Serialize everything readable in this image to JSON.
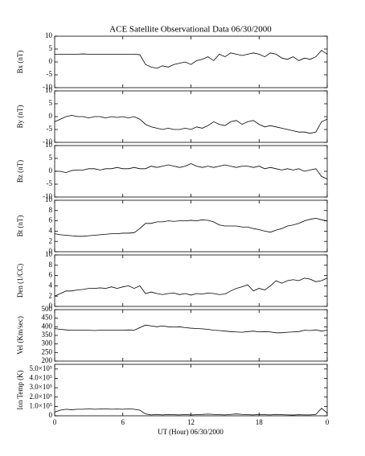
{
  "chart_data": [
    {
      "type": "line",
      "title": "ACE Satellite Observational Data  06/30/2000",
      "y_label": "Bx (nT)",
      "color": "#000000",
      "x": [
        0,
        0.5,
        1,
        1.5,
        2,
        2.5,
        3,
        3.5,
        4,
        4.5,
        5,
        5.5,
        6,
        6.5,
        7,
        7.5,
        8,
        8.5,
        9,
        9.5,
        10,
        10.5,
        11,
        11.5,
        12,
        12.5,
        13,
        13.5,
        14,
        14.5,
        15,
        15.5,
        16,
        16.5,
        17,
        17.5,
        18,
        18.5,
        19,
        19.5,
        20,
        20.5,
        21,
        21.5,
        22,
        22.5,
        23,
        23.5,
        24
      ],
      "values": [
        3,
        3,
        3,
        3,
        3,
        3.1,
        3,
        3,
        3,
        3,
        3,
        3,
        3,
        3,
        3,
        2.8,
        -1,
        -2,
        -2.5,
        -1.5,
        -2,
        -1,
        -0.5,
        0,
        -1,
        0.5,
        1,
        2,
        0.5,
        3,
        2,
        3.5,
        3,
        2.5,
        3,
        3.5,
        3,
        2,
        3.5,
        3,
        1.5,
        1,
        2,
        0.5,
        1.5,
        1,
        2,
        4.5,
        3
      ],
      "ylim": [
        -10,
        10
      ],
      "yticks": [
        -10,
        -5,
        0,
        5,
        10
      ]
    },
    {
      "type": "line",
      "y_label": "By (nT)",
      "color": "#000000",
      "x": [
        0,
        0.5,
        1,
        1.5,
        2,
        2.5,
        3,
        3.5,
        4,
        4.5,
        5,
        5.5,
        6,
        6.5,
        7,
        7.5,
        8,
        8.5,
        9,
        9.5,
        10,
        10.5,
        11,
        11.5,
        12,
        12.5,
        13,
        13.5,
        14,
        14.5,
        15,
        15.5,
        16,
        16.5,
        17,
        17.5,
        18,
        18.5,
        19,
        19.5,
        20,
        20.5,
        21,
        21.5,
        22,
        22.5,
        23,
        23.5,
        24
      ],
      "values": [
        -2,
        -1,
        0,
        0.5,
        0,
        0,
        -0.5,
        0,
        0,
        -0.5,
        0,
        -0.3,
        0,
        -0.5,
        0,
        -1,
        -3,
        -4,
        -4.5,
        -5,
        -4.5,
        -5,
        -5,
        -4.5,
        -5,
        -4,
        -4.5,
        -3.5,
        -2,
        -3,
        -3.5,
        -2,
        -1.5,
        -3,
        -2,
        -1.5,
        -3,
        -4,
        -3.5,
        -4,
        -4.5,
        -5,
        -5.5,
        -6,
        -6,
        -6.5,
        -6,
        -2,
        -1
      ],
      "ylim": [
        -10,
        10
      ],
      "yticks": [
        -10,
        -5,
        0,
        5,
        10
      ]
    },
    {
      "type": "line",
      "y_label": "Bz (nT)",
      "color": "#000000",
      "x": [
        0,
        0.5,
        1,
        1.5,
        2,
        2.5,
        3,
        3.5,
        4,
        4.5,
        5,
        5.5,
        6,
        6.5,
        7,
        7.5,
        8,
        8.5,
        9,
        9.5,
        10,
        10.5,
        11,
        11.5,
        12,
        12.5,
        13,
        13.5,
        14,
        14.5,
        15,
        15.5,
        16,
        16.5,
        17,
        17.5,
        18,
        18.5,
        19,
        19.5,
        20,
        20.5,
        21,
        21.5,
        22,
        22.5,
        23,
        23.5,
        24
      ],
      "values": [
        0,
        0,
        -0.5,
        0.3,
        0.5,
        0.5,
        1,
        1,
        0.5,
        1,
        1,
        1.5,
        1,
        1,
        1.5,
        1,
        1,
        2,
        1.5,
        2,
        2.5,
        2,
        1.5,
        2,
        3,
        2,
        1.5,
        2,
        1.5,
        2,
        2.5,
        2,
        1.5,
        2,
        2,
        1.5,
        2,
        1,
        1.5,
        1,
        0.5,
        1,
        0.5,
        1,
        0,
        0.5,
        1,
        -2,
        -3
      ],
      "ylim": [
        -10,
        10
      ],
      "yticks": [
        -10,
        -5,
        0,
        5,
        10
      ]
    },
    {
      "type": "line",
      "y_label": "Bt (nT)",
      "color": "#000000",
      "x": [
        0,
        0.5,
        1,
        1.5,
        2,
        2.5,
        3,
        3.5,
        4,
        4.5,
        5,
        5.5,
        6,
        6.5,
        7,
        7.5,
        8,
        8.5,
        9,
        9.5,
        10,
        10.5,
        11,
        11.5,
        12,
        12.5,
        13,
        13.5,
        14,
        14.5,
        15,
        15.5,
        16,
        16.5,
        17,
        17.5,
        18,
        18.5,
        19,
        19.5,
        20,
        20.5,
        21,
        21.5,
        22,
        22.5,
        23,
        23.5,
        24
      ],
      "values": [
        3.5,
        3.3,
        3.2,
        3.1,
        3,
        3,
        3.1,
        3.2,
        3.3,
        3.4,
        3.5,
        3.5,
        3.6,
        3.6,
        3.7,
        4.5,
        5.5,
        5.5,
        5.8,
        5.8,
        6,
        5.9,
        6,
        6,
        6.1,
        6,
        6.2,
        6.1,
        5.8,
        5.2,
        5,
        5,
        5,
        4.8,
        4.8,
        4.5,
        4.3,
        4,
        3.8,
        4.2,
        4.5,
        5,
        5.2,
        5.5,
        6,
        6.3,
        6.5,
        6.2,
        6
      ],
      "ylim": [
        0,
        10
      ],
      "yticks": [
        0,
        2,
        4,
        6,
        8,
        10
      ]
    },
    {
      "type": "line",
      "y_label": "Den (1/CC)",
      "color": "#000000",
      "x": [
        0,
        0.5,
        1,
        1.5,
        2,
        2.5,
        3,
        3.5,
        4,
        4.5,
        5,
        5.5,
        6,
        6.5,
        7,
        7.5,
        8,
        8.5,
        9,
        9.5,
        10,
        10.5,
        11,
        11.5,
        12,
        12.5,
        13,
        13.5,
        14,
        14.5,
        15,
        15.5,
        16,
        16.5,
        17,
        17.5,
        18,
        18.5,
        19,
        19.5,
        20,
        20.5,
        21,
        21.5,
        22,
        22.5,
        23,
        23.5,
        24
      ],
      "values": [
        2,
        2.5,
        3,
        3,
        3.2,
        3.3,
        3.5,
        3.5,
        3.6,
        3.5,
        3.8,
        3.5,
        3.8,
        4,
        3.5,
        4,
        2.5,
        2.8,
        2.5,
        2.3,
        2.5,
        2.6,
        2.3,
        2.5,
        2.2,
        2.5,
        2.4,
        2.6,
        2.5,
        2.3,
        2.4,
        3,
        3.5,
        3.8,
        4.2,
        3,
        3.5,
        3.2,
        4,
        5,
        4.5,
        5,
        5.2,
        5,
        5.5,
        5.3,
        4.8,
        5,
        5.5
      ],
      "ylim": [
        0,
        10
      ],
      "yticks": [
        0,
        2,
        4,
        6,
        8,
        10
      ]
    },
    {
      "type": "line",
      "y_label": "Vel (Km/sec)",
      "color": "#000000",
      "x": [
        0,
        0.5,
        1,
        1.5,
        2,
        2.5,
        3,
        3.5,
        4,
        4.5,
        5,
        5.5,
        6,
        6.5,
        7,
        7.5,
        8,
        8.5,
        9,
        9.5,
        10,
        10.5,
        11,
        11.5,
        12,
        12.5,
        13,
        13.5,
        14,
        14.5,
        15,
        15.5,
        16,
        16.5,
        17,
        17.5,
        18,
        18.5,
        19,
        19.5,
        20,
        20.5,
        21,
        21.5,
        22,
        22.5,
        23,
        23.5,
        24
      ],
      "values": [
        390,
        385,
        382,
        380,
        380,
        380,
        380,
        378,
        380,
        380,
        380,
        380,
        380,
        382,
        380,
        395,
        410,
        405,
        400,
        405,
        400,
        398,
        400,
        395,
        392,
        390,
        388,
        385,
        380,
        378,
        375,
        372,
        370,
        368,
        372,
        375,
        370,
        372,
        370,
        365,
        365,
        368,
        370,
        372,
        380,
        378,
        382,
        375,
        380
      ],
      "ylim": [
        200,
        500
      ],
      "yticks": [
        200,
        250,
        300,
        350,
        400,
        450,
        500
      ]
    },
    {
      "type": "line",
      "y_label": "Ion Temp (K)",
      "x_label": "UT (Hour)  06/30/2000",
      "color": "#000000",
      "x": [
        0,
        0.5,
        1,
        1.5,
        2,
        2.5,
        3,
        3.5,
        4,
        4.5,
        5,
        5.5,
        6,
        6.5,
        7,
        7.5,
        8,
        8.5,
        9,
        9.5,
        10,
        10.5,
        11,
        11.5,
        12,
        12.5,
        13,
        13.5,
        14,
        14.5,
        15,
        15.5,
        16,
        16.5,
        17,
        17.5,
        18,
        18.5,
        19,
        19.5,
        20,
        20.5,
        21,
        21.5,
        22,
        22.5,
        23,
        23.5,
        24
      ],
      "values": [
        40000,
        60000,
        70000,
        65000,
        70000,
        70000,
        75000,
        70000,
        72000,
        75000,
        70000,
        72000,
        70000,
        75000,
        70000,
        60000,
        20000,
        10000,
        15000,
        10000,
        15000,
        12000,
        10000,
        15000,
        10000,
        12000,
        15000,
        18000,
        15000,
        12000,
        10000,
        15000,
        20000,
        15000,
        12000,
        10000,
        15000,
        12000,
        10000,
        15000,
        12000,
        10000,
        8000,
        12000,
        10000,
        10000,
        15000,
        80000,
        30000
      ],
      "ylim": [
        0,
        550000
      ],
      "yticks": [
        0,
        {
          "value": 100000,
          "label": "1.0×10⁵"
        },
        {
          "value": 200000,
          "label": "2.0×10⁵"
        },
        {
          "value": 300000,
          "label": "3.0×10⁵"
        },
        {
          "value": 400000,
          "label": "4.0×10⁵"
        },
        {
          "value": 500000,
          "label": "5.0×10⁵"
        }
      ],
      "xlim": [
        0,
        24
      ],
      "xticks": [
        0,
        6,
        12,
        18,
        {
          "value": 24,
          "label": "0"
        }
      ]
    }
  ]
}
